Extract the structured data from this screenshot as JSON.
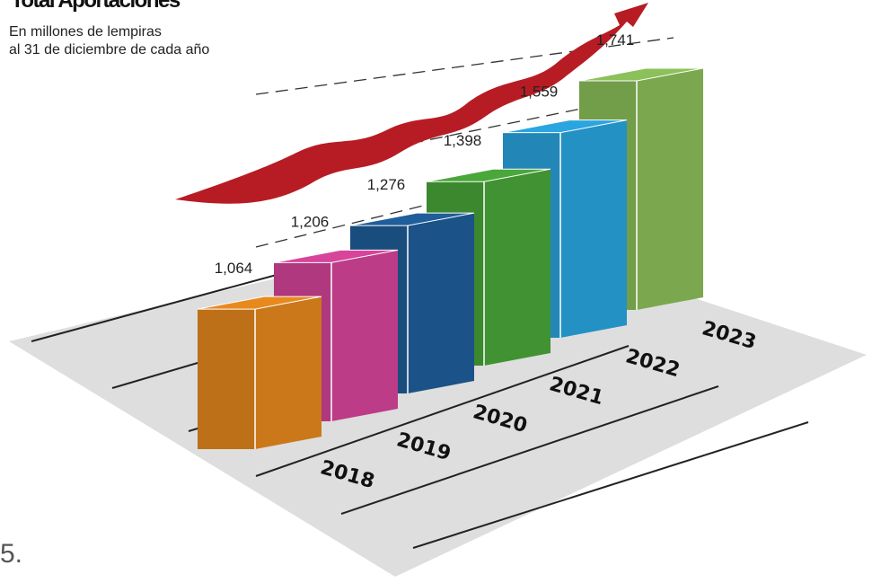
{
  "chart_data": {
    "type": "bar3d",
    "title": "Total Aportaciones",
    "subtitle": [
      "En millones de lempiras",
      "al 31 de diciembre de cada año"
    ],
    "categories": [
      "2018",
      "2019",
      "2020",
      "2021",
      "2022",
      "2023"
    ],
    "values": [
      1064,
      1206,
      1276,
      1398,
      1559,
      1741
    ],
    "value_labels": [
      "1,064",
      "1,206",
      "1,276",
      "1,398",
      "1,559",
      "1,741"
    ],
    "colors": [
      "#e8891e",
      "#d6459a",
      "#1f5e9a",
      "#4aa73a",
      "#2aa5e0",
      "#8cc05a"
    ]
  },
  "page_number": "5."
}
